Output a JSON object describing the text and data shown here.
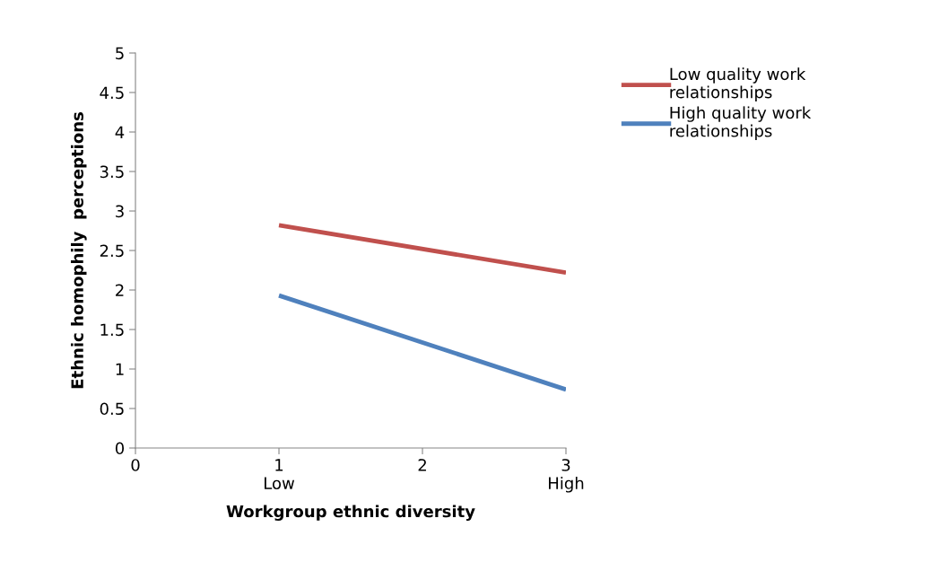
{
  "chart_data": {
    "type": "line",
    "xlabel": "Workgroup ethnic diversity",
    "ylabel": "Ethnic homophily  perceptions",
    "x": [
      1,
      3
    ],
    "series": [
      {
        "name": "Low quality work\nrelationships",
        "color": "#c0504d",
        "values": [
          2.82,
          2.22
        ]
      },
      {
        "name": "High quality work\nrelationships",
        "color": "#4f81bd",
        "values": [
          1.93,
          0.74
        ]
      }
    ],
    "xlim": [
      0,
      3
    ],
    "xticks": [
      0,
      {
        "value": 1,
        "label": "1\nLow"
      },
      2,
      {
        "value": 3,
        "label": "3\nHigh"
      }
    ],
    "ylim": [
      0,
      5
    ],
    "yticks": [
      0,
      0.5,
      1,
      1.5,
      2,
      2.5,
      3,
      3.5,
      4,
      4.5,
      5
    ],
    "grid": false,
    "legend": "right",
    "marker": "none",
    "line_style": "solid"
  }
}
